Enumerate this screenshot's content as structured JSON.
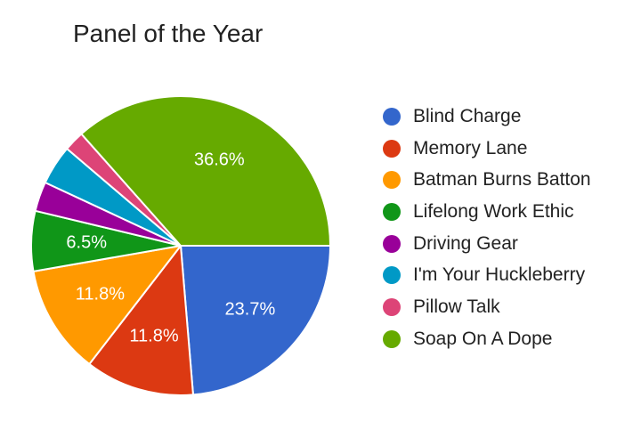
{
  "chart_data": {
    "type": "pie",
    "title": "Panel of the Year",
    "legend_position": "right",
    "series": [
      {
        "name": "Blind Charge",
        "value": 23.7,
        "color": "#3366cc",
        "label": "23.7%"
      },
      {
        "name": "Memory Lane",
        "value": 11.8,
        "color": "#dc3912",
        "label": "11.8%"
      },
      {
        "name": "Batman Burns Batton",
        "value": 11.8,
        "color": "#ff9900",
        "label": "11.8%"
      },
      {
        "name": "Lifelong Work Ethic",
        "value": 6.5,
        "color": "#109618",
        "label": "6.5%"
      },
      {
        "name": "Driving Gear",
        "value": 3.2,
        "color": "#990099",
        "label": ""
      },
      {
        "name": "I'm Your Huckleberry",
        "value": 4.3,
        "color": "#0099c6",
        "label": ""
      },
      {
        "name": "Pillow Talk",
        "value": 2.2,
        "color": "#dd4477",
        "label": ""
      },
      {
        "name": "Soap On A Dope",
        "value": 36.6,
        "color": "#66aa00",
        "label": "36.6%"
      }
    ]
  }
}
